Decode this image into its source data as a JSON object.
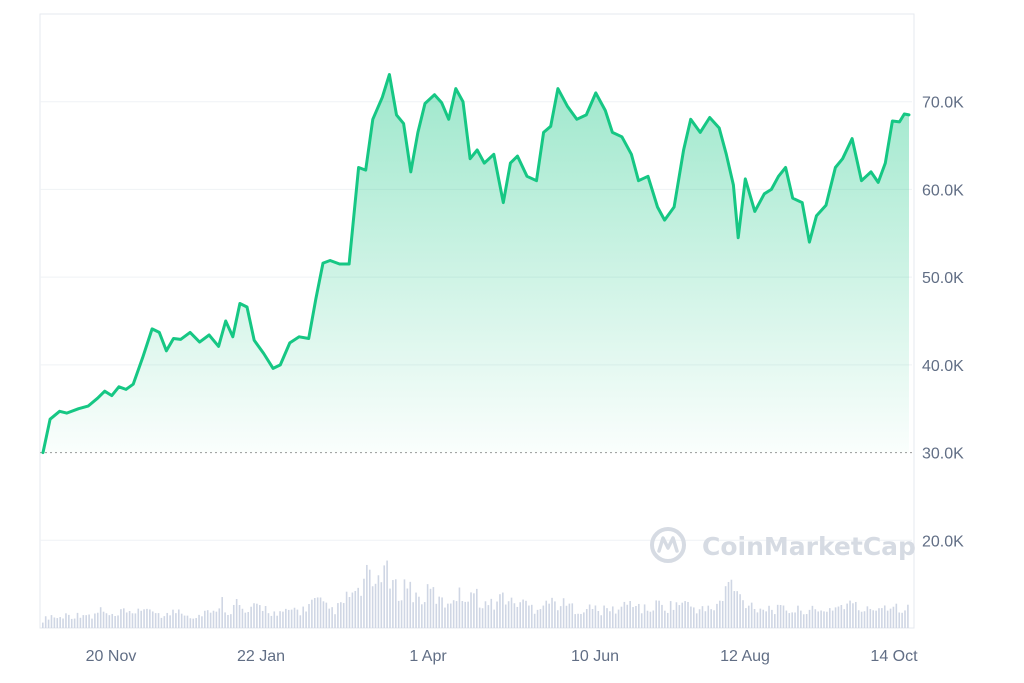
{
  "chart_data": {
    "type": "area",
    "x_tick_labels": [
      "20 Nov",
      "22 Jan",
      "1 Apr",
      "10 Jun",
      "12 Aug",
      "14 Oct"
    ],
    "y_tick_labels": [
      "20.0K",
      "30.0K",
      "40.0K",
      "50.0K",
      "60.0K",
      "70.0K"
    ],
    "y_ticks": [
      20000,
      30000,
      40000,
      50000,
      60000,
      70000
    ],
    "ylim": [
      10000,
      80000
    ],
    "baseline_value": 30000,
    "grid": true,
    "series": [
      {
        "x": [
          "2023-10-17",
          "2023-10-20",
          "2023-10-24",
          "2023-10-27",
          "2023-11-01",
          "2023-11-05",
          "2023-11-09",
          "2023-11-12",
          "2023-11-15",
          "2023-11-18",
          "2023-11-21",
          "2023-11-24",
          "2023-11-28",
          "2023-12-02",
          "2023-12-05",
          "2023-12-08",
          "2023-12-11",
          "2023-12-14",
          "2023-12-18",
          "2023-12-22",
          "2023-12-26",
          "2023-12-30",
          "2024-01-02",
          "2024-01-05",
          "2024-01-08",
          "2024-01-11",
          "2024-01-14",
          "2024-01-18",
          "2024-01-22",
          "2024-01-25",
          "2024-01-29",
          "2024-02-02",
          "2024-02-06",
          "2024-02-09",
          "2024-02-12",
          "2024-02-15",
          "2024-02-19",
          "2024-02-23",
          "2024-02-27",
          "2024-03-01",
          "2024-03-04",
          "2024-03-08",
          "2024-03-11",
          "2024-03-14",
          "2024-03-17",
          "2024-03-20",
          "2024-03-23",
          "2024-03-26",
          "2024-03-30",
          "2024-04-02",
          "2024-04-05",
          "2024-04-08",
          "2024-04-11",
          "2024-04-14",
          "2024-04-17",
          "2024-04-20",
          "2024-04-24",
          "2024-04-28",
          "2024-05-01",
          "2024-05-04",
          "2024-05-08",
          "2024-05-12",
          "2024-05-15",
          "2024-05-18",
          "2024-05-21",
          "2024-05-25",
          "2024-05-29",
          "2024-06-02",
          "2024-06-06",
          "2024-06-10",
          "2024-06-13",
          "2024-06-17",
          "2024-06-21",
          "2024-06-24",
          "2024-06-28",
          "2024-07-02",
          "2024-07-05",
          "2024-07-09",
          "2024-07-13",
          "2024-07-16",
          "2024-07-20",
          "2024-07-24",
          "2024-07-28",
          "2024-07-31",
          "2024-08-03",
          "2024-08-05",
          "2024-08-08",
          "2024-08-12",
          "2024-08-16",
          "2024-08-19",
          "2024-08-22",
          "2024-08-25",
          "2024-08-28",
          "2024-09-01",
          "2024-09-04",
          "2024-09-07",
          "2024-09-11",
          "2024-09-15",
          "2024-09-18",
          "2024-09-22",
          "2024-09-26",
          "2024-09-30",
          "2024-10-03",
          "2024-10-06",
          "2024-10-09",
          "2024-10-12",
          "2024-10-14",
          "2024-10-16"
        ],
        "values": [
          30000,
          33800,
          34700,
          34500,
          35000,
          35300,
          36200,
          37000,
          36500,
          37500,
          37200,
          37800,
          40800,
          44100,
          43700,
          41600,
          43000,
          42900,
          43700,
          42600,
          43400,
          42100,
          45000,
          43200,
          47000,
          46600,
          42800,
          41300,
          39600,
          40000,
          42500,
          43200,
          43000,
          47500,
          51600,
          51900,
          51500,
          51500,
          62500,
          62200,
          68000,
          70500,
          73100,
          68500,
          67500,
          62000,
          66500,
          69800,
          70800,
          69900,
          68000,
          71500,
          70000,
          63500,
          64500,
          63000,
          64000,
          58500,
          63000,
          63800,
          61500,
          61000,
          66500,
          67200,
          71500,
          69500,
          68000,
          68500,
          71000,
          69000,
          66500,
          66000,
          64000,
          61000,
          61500,
          58000,
          56500,
          58000,
          64500,
          68000,
          66500,
          68200,
          67000,
          64000,
          60500,
          54500,
          61200,
          57500,
          59500,
          60000,
          61500,
          62500,
          59000,
          58500,
          54000,
          57000,
          58200,
          62500,
          63500,
          65800,
          61000,
          62000,
          60800,
          63000,
          67800,
          67700,
          68600,
          68500
        ]
      }
    ],
    "volume_relative": [
      0.12,
      0.2,
      0.15,
      0.22,
      0.18,
      0.25,
      0.14,
      0.3,
      0.2,
      0.17,
      0.26,
      0.19,
      0.35,
      0.22,
      0.28,
      0.18,
      0.24,
      0.3,
      0.21,
      0.16,
      0.27,
      0.2,
      0.45,
      0.25,
      0.4,
      0.22,
      0.3,
      0.35,
      0.28,
      0.2,
      0.24,
      0.3,
      0.26,
      0.38,
      0.42,
      0.32,
      0.28,
      0.35,
      0.55,
      0.5,
      0.8,
      0.62,
      1.0,
      0.7,
      0.55,
      0.72,
      0.5,
      0.45,
      0.6,
      0.42,
      0.38,
      0.55,
      0.48,
      0.6,
      0.45,
      0.35,
      0.4,
      0.52,
      0.38,
      0.42,
      0.36,
      0.3,
      0.44,
      0.4,
      0.38,
      0.35,
      0.3,
      0.28,
      0.32,
      0.26,
      0.3,
      0.28,
      0.35,
      0.42,
      0.3,
      0.28,
      0.38,
      0.32,
      0.36,
      0.4,
      0.35,
      0.3,
      0.28,
      0.32,
      0.42,
      0.75,
      0.5,
      0.4,
      0.35,
      0.3,
      0.32,
      0.28,
      0.3,
      0.26,
      0.3,
      0.28,
      0.24,
      0.3,
      0.32,
      0.36,
      0.38,
      0.3,
      0.28,
      0.32,
      0.36,
      0.35,
      0.34,
      0.3
    ]
  },
  "watermark": {
    "text": "CoinMarketCap"
  },
  "colors": {
    "line": "#16c784",
    "grid": "#eff2f5",
    "volume": "#cfd6e4",
    "baseline": "#999999",
    "tick_text": "#616e85"
  }
}
